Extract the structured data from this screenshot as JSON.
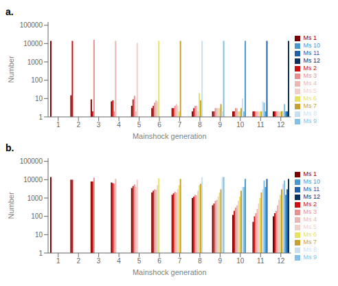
{
  "chart_data": [
    {
      "type": "bar",
      "title": "a.",
      "xlabel": "Mainshock generation",
      "ylabel": "Number",
      "categories": [
        1,
        2,
        3,
        4,
        5,
        6,
        7,
        8,
        9,
        10,
        11,
        12
      ],
      "log": "y",
      "ylim": [
        1,
        150000
      ],
      "yticks": [
        1,
        10,
        100,
        1000,
        10000,
        100000
      ],
      "grid": false,
      "legend": "right",
      "series": [
        {
          "name": "Ms 1",
          "color": "#7a0000",
          "values": [
            14000,
            15,
            9,
            7,
            4,
            3,
            3,
            2,
            2,
            2,
            2,
            2
          ]
        },
        {
          "name": "Ms 2",
          "color": "#cc1010",
          "values": [
            null,
            14000,
            2,
            8,
            9,
            4,
            3,
            3,
            2,
            2,
            2,
            2
          ]
        },
        {
          "name": "Ms 3",
          "color": "#e89090",
          "values": [
            null,
            null,
            16000,
            2,
            14,
            6,
            4,
            4,
            3,
            3,
            2,
            2
          ]
        },
        {
          "name": "Ms 4",
          "color": "#e8b8b0",
          "values": [
            null,
            null,
            null,
            14000,
            2,
            8,
            5,
            4,
            3,
            3,
            2,
            2
          ]
        },
        {
          "name": "Ms 5",
          "color": "#f0cfc8",
          "values": [
            null,
            null,
            null,
            null,
            11000,
            7,
            4,
            2,
            3,
            2,
            2,
            2
          ]
        },
        {
          "name": "Ms 6",
          "color": "#e8e060",
          "values": [
            null,
            null,
            null,
            null,
            null,
            14000,
            2,
            20,
            3,
            2,
            2,
            2
          ]
        },
        {
          "name": "Ms 7",
          "color": "#c8a030",
          "values": [
            null,
            null,
            null,
            null,
            null,
            null,
            14000,
            8,
            5,
            3,
            2,
            2
          ]
        },
        {
          "name": "Ms 8",
          "color": "#c8dff0",
          "values": [
            null,
            null,
            null,
            null,
            null,
            null,
            null,
            14000,
            2,
            10,
            7,
            2
          ]
        },
        {
          "name": "Ms 9",
          "color": "#80c0e8",
          "values": [
            null,
            null,
            null,
            null,
            null,
            null,
            null,
            null,
            14000,
            2,
            6,
            5
          ]
        },
        {
          "name": "Ms 10",
          "color": "#4898d0",
          "values": [
            null,
            null,
            null,
            null,
            null,
            null,
            null,
            null,
            null,
            14000,
            2,
            2
          ]
        },
        {
          "name": "Ms 11",
          "color": "#2060a8",
          "values": [
            null,
            null,
            null,
            null,
            null,
            null,
            null,
            null,
            null,
            null,
            14000,
            2
          ]
        },
        {
          "name": "Ms 12",
          "color": "#10305a",
          "values": [
            null,
            null,
            null,
            null,
            null,
            null,
            null,
            null,
            null,
            null,
            null,
            14000
          ]
        }
      ]
    },
    {
      "type": "bar",
      "title": "b.",
      "xlabel": "Mainshock generation",
      "ylabel": "Number",
      "categories": [
        1,
        2,
        3,
        4,
        5,
        6,
        7,
        8,
        9,
        10,
        11,
        12
      ],
      "log": "y",
      "ylim": [
        1,
        150000
      ],
      "yticks": [
        1,
        10,
        100,
        1000,
        10000,
        100000
      ],
      "grid": false,
      "legend": "right",
      "series": [
        {
          "name": "Ms 1",
          "color": "#7a0000",
          "values": [
            14000,
            10000,
            8000,
            7000,
            3500,
            2000,
            1500,
            1000,
            400,
            120,
            50,
            100
          ]
        },
        {
          "name": "Ms 2",
          "color": "#cc1010",
          "values": [
            null,
            10000,
            8000,
            6500,
            4500,
            2500,
            1800,
            1200,
            500,
            200,
            100,
            150
          ]
        },
        {
          "name": "Ms 3",
          "color": "#e89090",
          "values": [
            null,
            null,
            13000,
            6000,
            5500,
            3000,
            2200,
            1500,
            700,
            300,
            150,
            200
          ]
        },
        {
          "name": "Ms 4",
          "color": "#e8b8b0",
          "values": [
            null,
            null,
            null,
            11000,
            4000,
            2800,
            2000,
            1400,
            800,
            400,
            250,
            400
          ]
        },
        {
          "name": "Ms 5",
          "color": "#f0cfc8",
          "values": [
            null,
            null,
            null,
            null,
            10000,
            5000,
            3000,
            2500,
            1200,
            700,
            500,
            800
          ]
        },
        {
          "name": "Ms 6",
          "color": "#e8e060",
          "values": [
            null,
            null,
            null,
            null,
            null,
            12000,
            5000,
            5000,
            2000,
            1200,
            1000,
            1500
          ]
        },
        {
          "name": "Ms 7",
          "color": "#c8a030",
          "values": [
            null,
            null,
            null,
            null,
            null,
            null,
            11000,
            6000,
            3000,
            2500,
            2000,
            3000
          ]
        },
        {
          "name": "Ms 8",
          "color": "#c8dff0",
          "values": [
            null,
            null,
            null,
            null,
            null,
            null,
            null,
            14000,
            14000,
            4000,
            3000,
            6000
          ]
        },
        {
          "name": "Ms 9",
          "color": "#80c0e8",
          "values": [
            null,
            null,
            null,
            null,
            null,
            null,
            null,
            null,
            14000,
            4000,
            9000,
            9000
          ]
        },
        {
          "name": "Ms 10",
          "color": "#4898d0",
          "values": [
            null,
            null,
            null,
            null,
            null,
            null,
            null,
            null,
            null,
            11000,
            4000,
            1500
          ]
        },
        {
          "name": "Ms 11",
          "color": "#2060a8",
          "values": [
            null,
            null,
            null,
            null,
            null,
            null,
            null,
            null,
            null,
            null,
            11000,
            3000
          ]
        },
        {
          "name": "Ms 12",
          "color": "#10305a",
          "values": [
            null,
            null,
            null,
            null,
            null,
            null,
            null,
            null,
            null,
            null,
            null,
            11000
          ]
        }
      ]
    }
  ]
}
